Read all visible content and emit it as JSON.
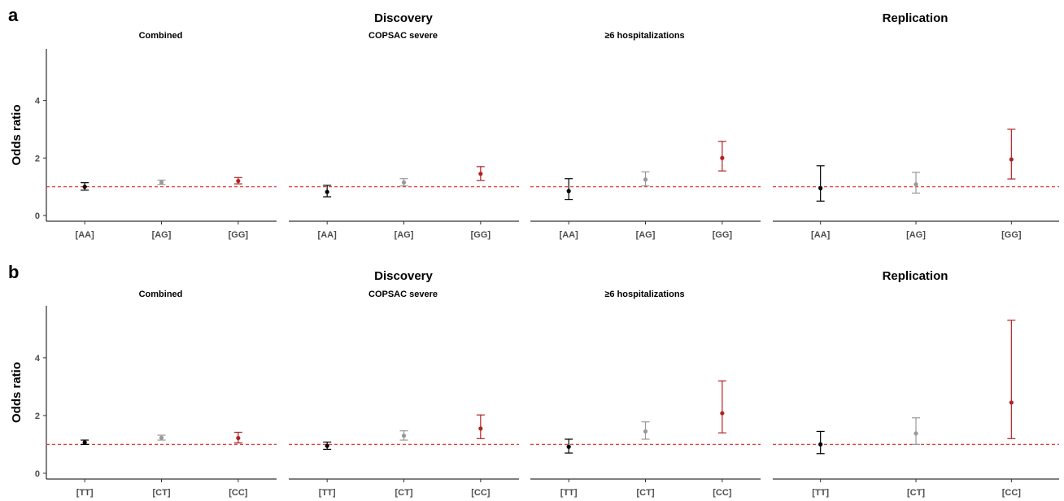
{
  "colors": {
    "genotype_1": "#000000",
    "genotype_2": "#999999",
    "genotype_3": "#b22222",
    "reference_line": "#e83a3a"
  },
  "reference_line_value": 1,
  "chart_data": [
    {
      "type": "scatter",
      "label": "a",
      "group_titles": [
        "Discovery",
        "Replication"
      ],
      "ylabel": "Odds ratio",
      "ylim": [
        -0.2,
        5.8
      ],
      "yticks": [
        0,
        2,
        4
      ],
      "grid": false,
      "reference_line": 1,
      "categories": [
        "[AA]",
        "[AG]",
        "[GG]"
      ],
      "panels": [
        {
          "title": "Combined",
          "points": [
            {
              "category": "[AA]",
              "or": 1.0,
              "lower": 0.88,
              "upper": 1.14
            },
            {
              "category": "[AG]",
              "or": 1.15,
              "lower": 1.08,
              "upper": 1.23
            },
            {
              "category": "[GG]",
              "or": 1.2,
              "lower": 1.1,
              "upper": 1.32
            }
          ]
        },
        {
          "title": "COPSAC severe",
          "points": [
            {
              "category": "[AA]",
              "or": 0.82,
              "lower": 0.65,
              "upper": 1.05
            },
            {
              "category": "[AG]",
              "or": 1.15,
              "lower": 1.03,
              "upper": 1.28
            },
            {
              "category": "[GG]",
              "or": 1.45,
              "lower": 1.22,
              "upper": 1.7
            }
          ]
        },
        {
          "title": "≥6 hospitalizations",
          "points": [
            {
              "category": "[AA]",
              "or": 0.85,
              "lower": 0.55,
              "upper": 1.28
            },
            {
              "category": "[AG]",
              "or": 1.25,
              "lower": 1.03,
              "upper": 1.52
            },
            {
              "category": "[GG]",
              "or": 2.0,
              "lower": 1.55,
              "upper": 2.58
            }
          ]
        },
        {
          "title": "",
          "points": [
            {
              "category": "[AA]",
              "or": 0.95,
              "lower": 0.5,
              "upper": 1.73
            },
            {
              "category": "[AG]",
              "or": 1.08,
              "lower": 0.78,
              "upper": 1.5
            },
            {
              "category": "[GG]",
              "or": 1.95,
              "lower": 1.27,
              "upper": 3.0
            }
          ]
        }
      ]
    },
    {
      "type": "scatter",
      "label": "b",
      "group_titles": [
        "Discovery",
        "Replication"
      ],
      "ylabel": "Odds ratio",
      "ylim": [
        -0.2,
        5.8
      ],
      "yticks": [
        0,
        2,
        4
      ],
      "grid": false,
      "reference_line": 1,
      "categories": [
        "[TT]",
        "[CT]",
        "[CC]"
      ],
      "panels": [
        {
          "title": "Combined",
          "points": [
            {
              "category": "[TT]",
              "or": 1.07,
              "lower": 1.0,
              "upper": 1.15
            },
            {
              "category": "[CT]",
              "or": 1.23,
              "lower": 1.15,
              "upper": 1.32
            },
            {
              "category": "[CC]",
              "or": 1.22,
              "lower": 1.05,
              "upper": 1.42
            }
          ]
        },
        {
          "title": "COPSAC severe",
          "points": [
            {
              "category": "[TT]",
              "or": 0.95,
              "lower": 0.83,
              "upper": 1.08
            },
            {
              "category": "[CT]",
              "or": 1.3,
              "lower": 1.15,
              "upper": 1.47
            },
            {
              "category": "[CC]",
              "or": 1.55,
              "lower": 1.2,
              "upper": 2.02
            }
          ]
        },
        {
          "title": "≥6 hospitalizations",
          "points": [
            {
              "category": "[TT]",
              "or": 0.92,
              "lower": 0.7,
              "upper": 1.18
            },
            {
              "category": "[CT]",
              "or": 1.45,
              "lower": 1.18,
              "upper": 1.78
            },
            {
              "category": "[CC]",
              "or": 2.08,
              "lower": 1.4,
              "upper": 3.2
            }
          ]
        },
        {
          "title": "",
          "points": [
            {
              "category": "[TT]",
              "or": 1.0,
              "lower": 0.68,
              "upper": 1.45
            },
            {
              "category": "[CT]",
              "or": 1.38,
              "lower": 1.0,
              "upper": 1.92
            },
            {
              "category": "[CC]",
              "or": 2.45,
              "lower": 1.2,
              "upper": 5.3
            }
          ]
        }
      ]
    }
  ]
}
